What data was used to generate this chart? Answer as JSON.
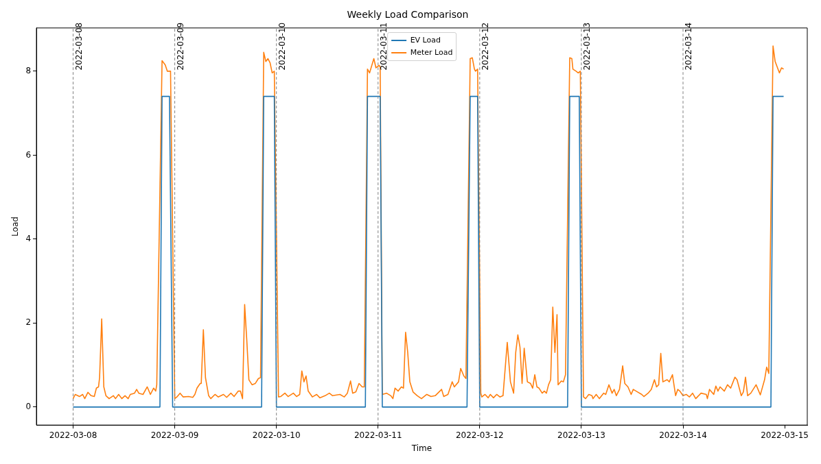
{
  "chart_data": {
    "type": "line",
    "title": "Weekly Load Comparison",
    "xlabel": "Time",
    "ylabel": "Load",
    "xlim": [
      "2022-03-07T15:20",
      "2022-03-15T05:20"
    ],
    "ylim": [
      -0.43,
      9.03
    ],
    "xticks": [
      "2022-03-08",
      "2022-03-09",
      "2022-03-10",
      "2022-03-11",
      "2022-03-12",
      "2022-03-13",
      "2022-03-14",
      "2022-03-15"
    ],
    "yticks": [
      0,
      2,
      4,
      6,
      8
    ],
    "grid": false,
    "legend": "top",
    "marker": "none",
    "line_style": "solid",
    "ref_lines": [
      {
        "axis": "x",
        "value": "2022-03-08",
        "label": "2022-03-08",
        "color": "#808080",
        "line_style": "dashed"
      },
      {
        "axis": "x",
        "value": "2022-03-09",
        "label": "2022-03-09",
        "color": "#808080",
        "line_style": "dashed"
      },
      {
        "axis": "x",
        "value": "2022-03-10",
        "label": "2022-03-10",
        "color": "#808080",
        "line_style": "dashed"
      },
      {
        "axis": "x",
        "value": "2022-03-11",
        "label": "2022-03-11",
        "color": "#808080",
        "line_style": "dashed"
      },
      {
        "axis": "x",
        "value": "2022-03-12",
        "label": "2022-03-12",
        "color": "#808080",
        "line_style": "dashed"
      },
      {
        "axis": "x",
        "value": "2022-03-13",
        "label": "2022-03-13",
        "color": "#808080",
        "line_style": "dashed"
      },
      {
        "axis": "x",
        "value": "2022-03-14",
        "label": "2022-03-14",
        "color": "#808080",
        "line_style": "dashed"
      }
    ],
    "series": [
      {
        "name": "EV Load",
        "color": "#1f77b4",
        "x": [
          "2022-03-08T00:00",
          "2022-03-08T20:30",
          "2022-03-08T21:00",
          "2022-03-08T22:45",
          "2022-03-08T23:30",
          "2022-03-09T20:30",
          "2022-03-09T21:00",
          "2022-03-09T23:30",
          "2022-03-10T00:00",
          "2022-03-10T21:00",
          "2022-03-10T21:30",
          "2022-03-11T00:30",
          "2022-03-11T01:00",
          "2022-03-11T21:00",
          "2022-03-11T21:45",
          "2022-03-11T23:30",
          "2022-03-12T00:00",
          "2022-03-12T20:45",
          "2022-03-12T21:15",
          "2022-03-12T23:30",
          "2022-03-13T00:00",
          "2022-03-14T20:45",
          "2022-03-14T21:15",
          "2022-03-14T23:45"
        ],
        "values": [
          0,
          0,
          7.4,
          7.4,
          0,
          0,
          7.4,
          7.4,
          0,
          0,
          7.4,
          7.4,
          0,
          0,
          7.4,
          7.4,
          0,
          0,
          7.4,
          7.4,
          0,
          0,
          7.4,
          7.4
        ]
      },
      {
        "name": "Meter Load",
        "color": "#ff7f0e",
        "x": [
          "2022-03-08T00:00",
          "2022-03-08T00:30",
          "2022-03-08T01:30",
          "2022-03-08T02:15",
          "2022-03-08T02:45",
          "2022-03-08T03:30",
          "2022-03-08T04:15",
          "2022-03-08T05:00",
          "2022-03-08T05:30",
          "2022-03-08T06:00",
          "2022-03-08T06:15",
          "2022-03-08T06:45",
          "2022-03-08T07:15",
          "2022-03-08T07:45",
          "2022-03-08T08:30",
          "2022-03-08T09:30",
          "2022-03-08T10:00",
          "2022-03-08T10:45",
          "2022-03-08T11:30",
          "2022-03-08T12:15",
          "2022-03-08T13:00",
          "2022-03-08T13:30",
          "2022-03-08T14:30",
          "2022-03-08T15:00",
          "2022-03-08T15:30",
          "2022-03-08T16:30",
          "2022-03-08T17:30",
          "2022-03-08T18:15",
          "2022-03-08T19:00",
          "2022-03-08T19:30",
          "2022-03-08T19:45",
          "2022-03-08T21:00",
          "2022-03-08T21:45",
          "2022-03-08T22:15",
          "2022-03-08T23:00",
          "2022-03-09T00:00",
          "2022-03-09T00:30",
          "2022-03-09T01:15",
          "2022-03-09T02:00",
          "2022-03-09T03:15",
          "2022-03-09T04:15",
          "2022-03-09T04:45",
          "2022-03-09T05:15",
          "2022-03-09T06:00",
          "2022-03-09T06:15",
          "2022-03-09T06:45",
          "2022-03-09T07:15",
          "2022-03-09T08:00",
          "2022-03-09T08:30",
          "2022-03-09T09:30",
          "2022-03-09T10:15",
          "2022-03-09T11:30",
          "2022-03-09T12:15",
          "2022-03-09T13:15",
          "2022-03-09T14:00",
          "2022-03-09T15:00",
          "2022-03-09T15:30",
          "2022-03-09T16:00",
          "2022-03-09T16:30",
          "2022-03-09T17:00",
          "2022-03-09T17:30",
          "2022-03-09T18:15",
          "2022-03-09T19:00",
          "2022-03-09T19:45",
          "2022-03-09T20:15",
          "2022-03-09T21:00",
          "2022-03-09T21:30",
          "2022-03-09T22:00",
          "2022-03-09T22:30",
          "2022-03-09T23:00",
          "2022-03-09T23:30",
          "2022-03-10T00:30",
          "2022-03-10T01:00",
          "2022-03-10T02:00",
          "2022-03-10T02:45",
          "2022-03-10T04:00",
          "2022-03-10T04:45",
          "2022-03-10T05:30",
          "2022-03-10T06:00",
          "2022-03-10T06:30",
          "2022-03-10T07:00",
          "2022-03-10T07:30",
          "2022-03-10T08:30",
          "2022-03-10T09:30",
          "2022-03-10T10:15",
          "2022-03-10T11:30",
          "2022-03-10T12:30",
          "2022-03-10T13:15",
          "2022-03-10T15:00",
          "2022-03-10T16:00",
          "2022-03-10T16:45",
          "2022-03-10T17:30",
          "2022-03-10T18:00",
          "2022-03-10T18:45",
          "2022-03-10T19:30",
          "2022-03-10T20:15",
          "2022-03-10T20:45",
          "2022-03-10T21:30",
          "2022-03-10T22:00",
          "2022-03-10T23:00",
          "2022-03-10T23:30",
          "2022-03-11T00:15",
          "2022-03-11T00:30",
          "2022-03-11T01:00",
          "2022-03-11T02:00",
          "2022-03-11T03:00",
          "2022-03-11T03:30",
          "2022-03-11T04:00",
          "2022-03-11T04:45",
          "2022-03-11T05:30",
          "2022-03-11T06:00",
          "2022-03-11T06:30",
          "2022-03-11T07:00",
          "2022-03-11T07:30",
          "2022-03-11T08:15",
          "2022-03-11T09:15",
          "2022-03-11T10:15",
          "2022-03-11T11:30",
          "2022-03-11T12:30",
          "2022-03-11T13:30",
          "2022-03-11T15:00",
          "2022-03-11T15:30",
          "2022-03-11T16:30",
          "2022-03-11T17:30",
          "2022-03-11T18:00",
          "2022-03-11T19:00",
          "2022-03-11T19:30",
          "2022-03-11T20:15",
          "2022-03-11T20:45",
          "2022-03-11T21:45",
          "2022-03-11T22:15",
          "2022-03-11T22:45",
          "2022-03-11T23:00",
          "2022-03-11T23:30",
          "2022-03-12T00:15",
          "2022-03-12T00:30",
          "2022-03-12T01:15",
          "2022-03-12T02:00",
          "2022-03-12T02:30",
          "2022-03-12T03:15",
          "2022-03-12T04:00",
          "2022-03-12T04:45",
          "2022-03-12T05:30",
          "2022-03-12T06:30",
          "2022-03-12T07:15",
          "2022-03-12T08:00",
          "2022-03-12T08:30",
          "2022-03-12T09:00",
          "2022-03-12T09:30",
          "2022-03-12T10:00",
          "2022-03-12T10:30",
          "2022-03-12T11:15",
          "2022-03-12T12:00",
          "2022-03-12T12:30",
          "2022-03-12T13:00",
          "2022-03-12T13:30",
          "2022-03-12T14:00",
          "2022-03-12T14:45",
          "2022-03-12T15:15",
          "2022-03-12T15:45",
          "2022-03-12T16:15",
          "2022-03-12T16:45",
          "2022-03-12T17:15",
          "2022-03-12T17:45",
          "2022-03-12T18:15",
          "2022-03-12T18:30",
          "2022-03-12T19:15",
          "2022-03-12T19:45",
          "2022-03-12T20:15",
          "2022-03-12T21:15",
          "2022-03-12T21:45",
          "2022-03-12T22:00",
          "2022-03-12T22:45",
          "2022-03-12T23:15",
          "2022-03-12T23:45",
          "2022-03-13T00:30",
          "2022-03-13T01:00",
          "2022-03-13T01:45",
          "2022-03-13T02:30",
          "2022-03-13T02:45",
          "2022-03-13T03:30",
          "2022-03-13T04:15",
          "2022-03-13T05:15",
          "2022-03-13T05:45",
          "2022-03-13T06:30",
          "2022-03-13T07:15",
          "2022-03-13T07:45",
          "2022-03-13T08:15",
          "2022-03-13T09:00",
          "2022-03-13T09:45",
          "2022-03-13T10:15",
          "2022-03-13T11:00",
          "2022-03-13T11:45",
          "2022-03-13T12:15",
          "2022-03-13T13:15",
          "2022-03-13T14:15",
          "2022-03-13T14:45",
          "2022-03-13T15:45",
          "2022-03-13T16:30",
          "2022-03-13T17:15",
          "2022-03-13T17:45",
          "2022-03-13T18:15",
          "2022-03-13T18:45",
          "2022-03-13T19:15",
          "2022-03-13T20:15",
          "2022-03-13T20:45",
          "2022-03-13T21:30",
          "2022-03-13T22:15",
          "2022-03-13T22:45",
          "2022-03-13T23:15",
          "2022-03-14T00:00",
          "2022-03-14T00:45",
          "2022-03-14T01:30",
          "2022-03-14T02:15",
          "2022-03-14T03:00",
          "2022-03-14T04:15",
          "2022-03-14T05:30",
          "2022-03-14T05:45",
          "2022-03-14T06:15",
          "2022-03-14T07:15",
          "2022-03-14T07:45",
          "2022-03-14T08:15",
          "2022-03-14T08:45",
          "2022-03-14T09:45",
          "2022-03-14T10:30",
          "2022-03-14T11:15",
          "2022-03-14T12:15",
          "2022-03-14T12:45",
          "2022-03-14T13:45",
          "2022-03-14T14:15",
          "2022-03-14T14:45",
          "2022-03-14T15:15",
          "2022-03-14T16:00",
          "2022-03-14T17:15",
          "2022-03-14T18:15",
          "2022-03-14T19:15",
          "2022-03-14T19:45",
          "2022-03-14T20:15",
          "2022-03-14T21:15",
          "2022-03-14T21:45",
          "2022-03-14T22:45",
          "2022-03-14T23:15",
          "2022-03-14T23:45"
        ],
        "values": [
          0.2,
          0.3,
          0.25,
          0.3,
          0.2,
          0.35,
          0.27,
          0.25,
          0.45,
          0.48,
          0.7,
          2.1,
          0.48,
          0.27,
          0.2,
          0.27,
          0.2,
          0.3,
          0.2,
          0.27,
          0.2,
          0.3,
          0.33,
          0.42,
          0.33,
          0.3,
          0.48,
          0.3,
          0.45,
          0.38,
          0.53,
          8.25,
          8.15,
          8.0,
          8.0,
          0.2,
          0.24,
          0.33,
          0.24,
          0.25,
          0.23,
          0.3,
          0.45,
          0.56,
          0.56,
          1.84,
          0.7,
          0.27,
          0.2,
          0.3,
          0.24,
          0.3,
          0.23,
          0.33,
          0.25,
          0.38,
          0.38,
          0.2,
          2.44,
          1.6,
          0.65,
          0.53,
          0.56,
          0.68,
          0.7,
          8.45,
          8.23,
          8.3,
          8.2,
          7.96,
          8.0,
          0.24,
          0.25,
          0.33,
          0.25,
          0.33,
          0.25,
          0.3,
          0.86,
          0.6,
          0.74,
          0.38,
          0.24,
          0.3,
          0.22,
          0.27,
          0.33,
          0.27,
          0.3,
          0.24,
          0.33,
          0.62,
          0.33,
          0.36,
          0.56,
          0.48,
          0.48,
          8.05,
          7.96,
          8.3,
          8.08,
          8.14,
          8.1,
          0.3,
          0.33,
          0.27,
          0.2,
          0.45,
          0.38,
          0.48,
          0.45,
          1.78,
          1.3,
          0.6,
          0.36,
          0.27,
          0.2,
          0.3,
          0.25,
          0.27,
          0.42,
          0.25,
          0.3,
          0.6,
          0.48,
          0.6,
          0.92,
          0.74,
          0.68,
          8.3,
          8.32,
          8.05,
          8.0,
          8.05,
          0.33,
          0.24,
          0.3,
          0.22,
          0.3,
          0.22,
          0.3,
          0.24,
          0.27,
          1.54,
          0.6,
          0.33,
          1.3,
          1.72,
          1.43,
          0.56,
          1.4,
          0.6,
          0.56,
          0.45,
          0.77,
          0.48,
          0.45,
          0.33,
          0.38,
          0.33,
          0.53,
          0.65,
          2.38,
          1.3,
          2.2,
          0.53,
          0.62,
          0.6,
          0.77,
          8.32,
          8.3,
          8.05,
          8.0,
          7.96,
          8.0,
          0.24,
          0.2,
          0.3,
          0.27,
          0.2,
          0.3,
          0.2,
          0.33,
          0.3,
          0.53,
          0.33,
          0.42,
          0.27,
          0.42,
          0.98,
          0.56,
          0.48,
          0.3,
          0.42,
          0.36,
          0.3,
          0.25,
          0.33,
          0.42,
          0.65,
          0.48,
          0.53,
          1.28,
          0.6,
          0.65,
          0.6,
          0.77,
          0.27,
          0.42,
          0.38,
          0.27,
          0.3,
          0.24,
          0.33,
          0.2,
          0.33,
          0.3,
          0.2,
          0.42,
          0.3,
          0.5,
          0.38,
          0.48,
          0.38,
          0.53,
          0.45,
          0.71,
          0.65,
          0.27,
          0.36,
          0.71,
          0.27,
          0.33,
          0.53,
          0.29,
          0.65,
          0.95,
          0.8,
          8.6,
          8.23,
          7.96,
          8.08,
          8.05
        ]
      }
    ]
  }
}
